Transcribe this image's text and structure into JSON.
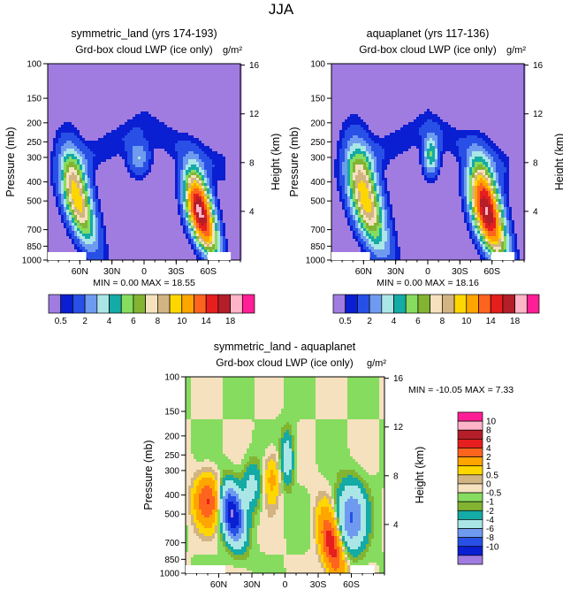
{
  "suptitle": "JJA",
  "chart_data": [
    {
      "type": "heatmap",
      "title": "symmetric_land (yrs 174-193)",
      "subtitle": "Grd-box cloud LWP (ice only)",
      "units": "g/m²",
      "ylabel": "Pressure (mb)",
      "ylabel_right": "Height (km)",
      "x_ticks": [
        "60N",
        "30N",
        "0",
        "30S",
        "60S"
      ],
      "x_tick_values": [
        60,
        30,
        0,
        -30,
        -60
      ],
      "xlim": [
        90,
        -90
      ],
      "y_ticks": [
        "100",
        "150",
        "200",
        "250",
        "300",
        "400",
        "500",
        "700",
        "850",
        "1000"
      ],
      "y_tick_values": [
        100,
        150,
        200,
        250,
        300,
        400,
        500,
        700,
        850,
        1000
      ],
      "ylim": [
        100,
        1000
      ],
      "height_ticks": [
        "16",
        "12",
        "8",
        "4"
      ],
      "height_tick_values": [
        16,
        12,
        8,
        4
      ],
      "stats": "MIN =    0.00   MAX =   18.55",
      "min": 0.0,
      "max": 18.55,
      "features": [
        {
          "lat": 62,
          "p": 500,
          "peak": 10
        },
        {
          "lat": 5,
          "p": 300,
          "peak": 3
        },
        {
          "lat": -52,
          "p": 580,
          "peak": 18.55
        }
      ]
    },
    {
      "type": "heatmap",
      "title": "aquaplanet (yrs 117-136)",
      "subtitle": "Grd-box cloud LWP (ice only)",
      "units": "g/m²",
      "ylabel": "Pressure (mb)",
      "ylabel_right": "Height (km)",
      "x_ticks": [
        "60N",
        "30N",
        "0",
        "30S",
        "60S"
      ],
      "x_tick_values": [
        60,
        30,
        0,
        -30,
        -60
      ],
      "xlim": [
        90,
        -90
      ],
      "y_ticks": [
        "100",
        "150",
        "200",
        "250",
        "300",
        "400",
        "500",
        "700",
        "850",
        "1000"
      ],
      "y_tick_values": [
        100,
        150,
        200,
        250,
        300,
        400,
        500,
        700,
        850,
        1000
      ],
      "ylim": [
        100,
        1000
      ],
      "height_ticks": [
        "16",
        "12",
        "8",
        "4"
      ],
      "height_tick_values": [
        16,
        12,
        8,
        4
      ],
      "stats": "MIN =    0.00   MAX =   18.16",
      "min": 0.0,
      "max": 18.16,
      "features": [
        {
          "lat": 58,
          "p": 500,
          "peak": 10
        },
        {
          "lat": -3,
          "p": 290,
          "peak": 5
        },
        {
          "lat": -55,
          "p": 560,
          "peak": 18.16
        }
      ]
    },
    {
      "type": "heatmap",
      "title": "symmetric_land - aquaplanet",
      "subtitle": "Grd-box cloud LWP (ice only)",
      "units": "g/m²",
      "ylabel": "Pressure (mb)",
      "ylabel_right": "Height (km)",
      "x_ticks": [
        "60N",
        "30N",
        "0",
        "30S",
        "60S"
      ],
      "x_tick_values": [
        60,
        30,
        0,
        -30,
        -60
      ],
      "xlim": [
        90,
        -90
      ],
      "y_ticks": [
        "100",
        "150",
        "200",
        "250",
        "300",
        "400",
        "500",
        "700",
        "850",
        "1000"
      ],
      "y_tick_values": [
        100,
        150,
        200,
        250,
        300,
        400,
        500,
        700,
        850,
        1000
      ],
      "ylim": [
        100,
        1000
      ],
      "height_ticks": [
        "16",
        "12",
        "8",
        "4"
      ],
      "height_tick_values": [
        16,
        12,
        8,
        4
      ],
      "stats": "MIN =  -10.05   MAX =    7.33",
      "min": -10.05,
      "max": 7.33,
      "features": [
        {
          "lat": 70,
          "p": 430,
          "peak": 6
        },
        {
          "lat": 48,
          "p": 500,
          "peak": -10
        },
        {
          "lat": 30,
          "p": 360,
          "peak": -2
        },
        {
          "lat": 12,
          "p": 330,
          "peak": 2
        },
        {
          "lat": -2,
          "p": 260,
          "peak": -3
        },
        {
          "lat": -42,
          "p": 720,
          "peak": 7.33
        },
        {
          "lat": -60,
          "p": 520,
          "peak": -6
        }
      ]
    }
  ],
  "legend_abs": {
    "labels": [
      "0.5",
      "2",
      "4",
      "6",
      "8",
      "10",
      "14",
      "18"
    ],
    "colors": [
      "#a07ce0",
      "#0a1ed2",
      "#2850e6",
      "#6e9bf0",
      "#aae6e6",
      "#14aaa5",
      "#86dc5f",
      "#82b432",
      "#f5e1be",
      "#d2b482",
      "#ffd700",
      "#ffa500",
      "#ff641e",
      "#e61e1e",
      "#b41e28",
      "#ffb4c8",
      "#ff1e96"
    ]
  },
  "legend_diff": {
    "labels": [
      "10",
      "8",
      "6",
      "4",
      "2",
      "1",
      "0.5",
      "0",
      "-0.5",
      "-1",
      "-2",
      "-4",
      "-6",
      "-8",
      "-10"
    ],
    "colors": [
      "#ff1e96",
      "#ffb4c8",
      "#b41e28",
      "#e61e1e",
      "#ff641e",
      "#ffa500",
      "#ffd700",
      "#d2b482",
      "#f5e1be",
      "#86dc5f",
      "#82b432",
      "#14aaa5",
      "#aae6e6",
      "#6e9bf0",
      "#2850e6",
      "#0a1ed2",
      "#a07ce0"
    ]
  }
}
